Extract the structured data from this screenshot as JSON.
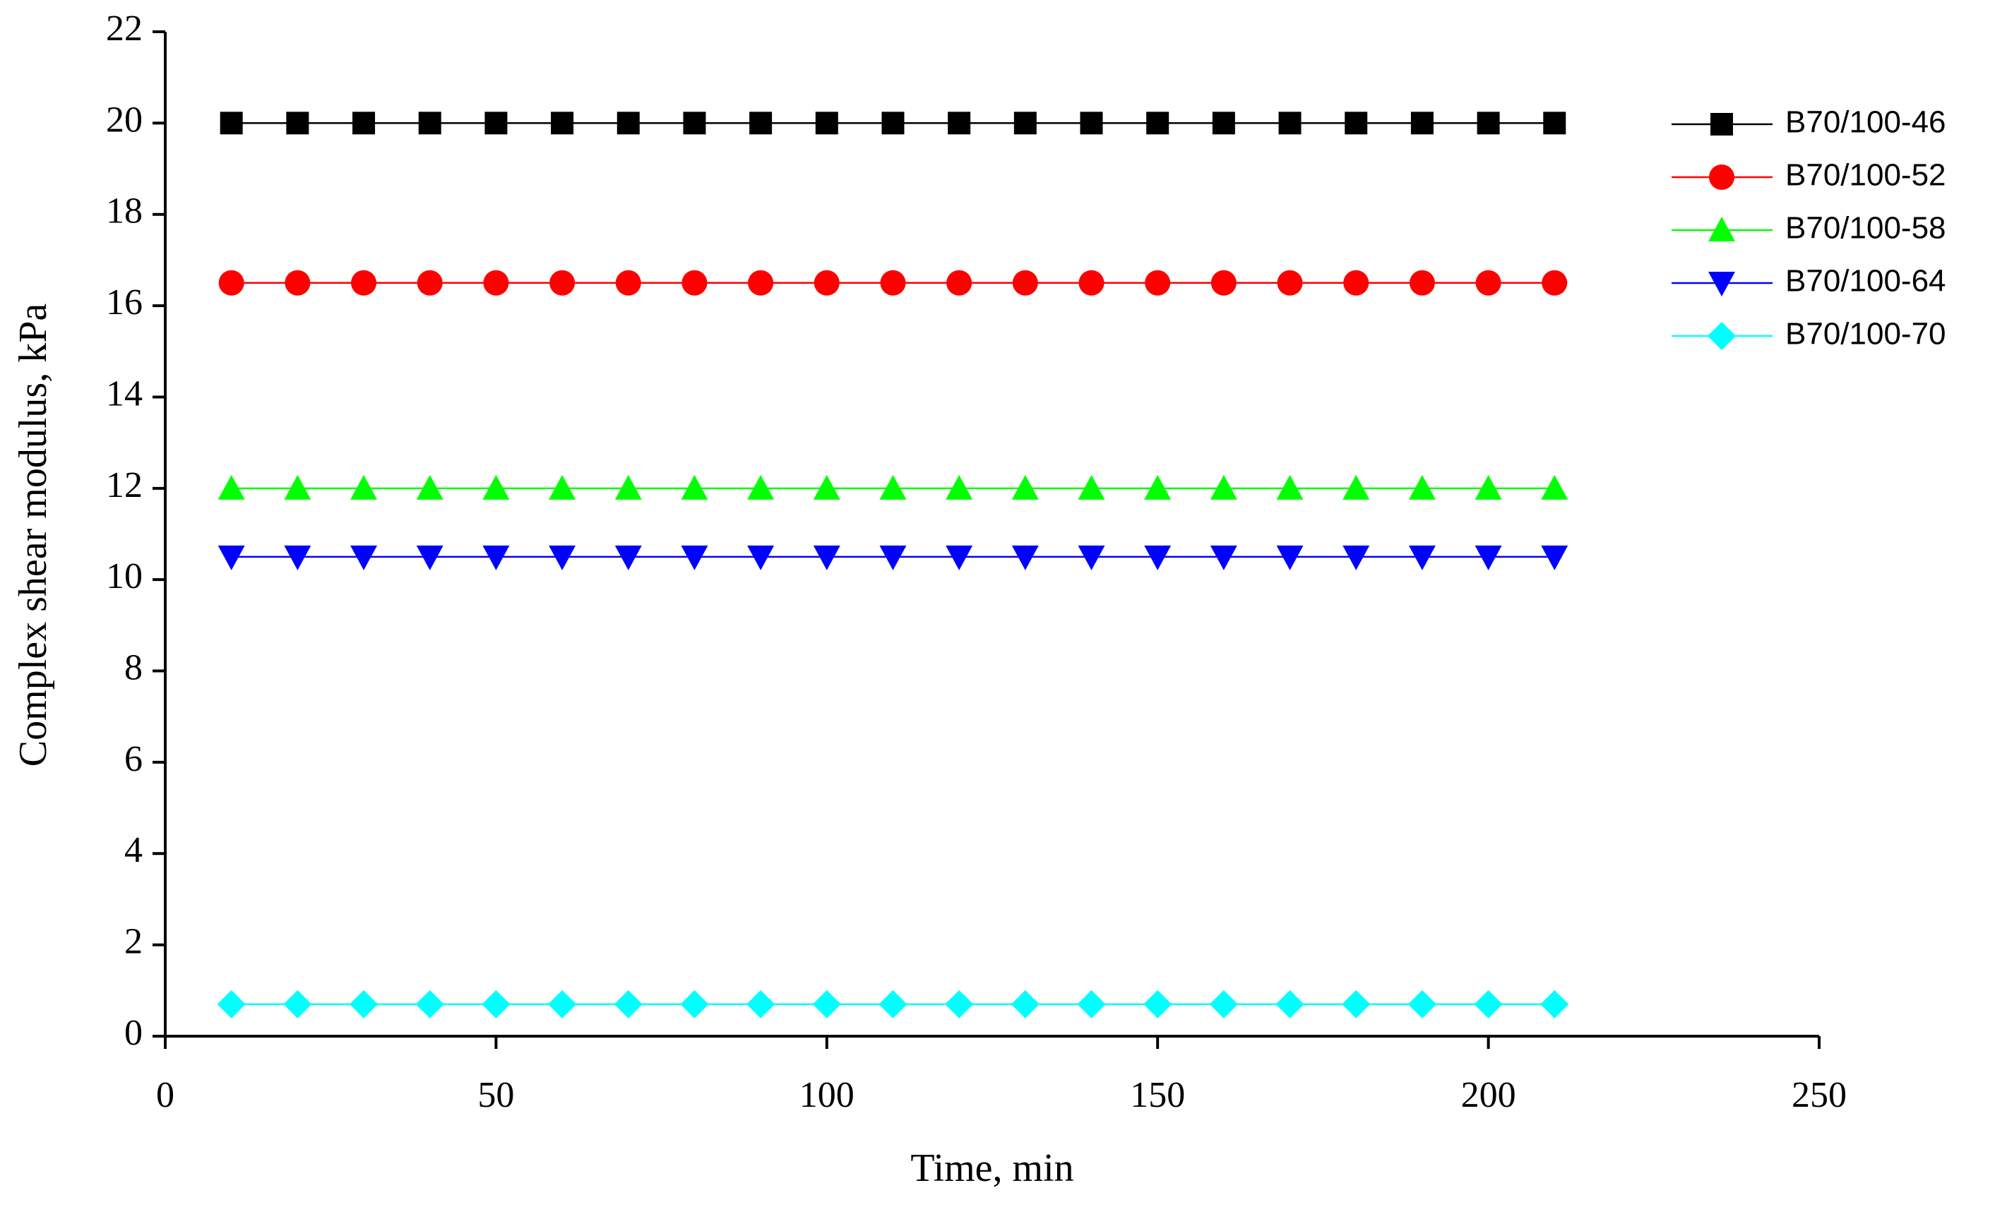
{
  "chart_data": {
    "type": "line",
    "x_label": "Time, min",
    "y_label": "Complex shear modulus, kPa",
    "x": [
      10,
      20,
      30,
      40,
      50,
      60,
      70,
      80,
      90,
      100,
      110,
      120,
      130,
      140,
      150,
      160,
      170,
      180,
      190,
      200,
      210
    ],
    "series": [
      {
        "name": "B70/100-46",
        "color": "#000000",
        "marker": "square",
        "values": [
          20,
          20,
          20,
          20,
          20,
          20,
          20,
          20,
          20,
          20,
          20,
          20,
          20,
          20,
          20,
          20,
          20,
          20,
          20,
          20,
          20
        ]
      },
      {
        "name": "B70/100-52",
        "color": "#ff0000",
        "marker": "circle",
        "values": [
          16.5,
          16.5,
          16.5,
          16.5,
          16.5,
          16.5,
          16.5,
          16.5,
          16.5,
          16.5,
          16.5,
          16.5,
          16.5,
          16.5,
          16.5,
          16.5,
          16.5,
          16.5,
          16.5,
          16.5,
          16.5
        ]
      },
      {
        "name": "B70/100-58",
        "color": "#00ff00",
        "marker": "triangle-up",
        "values": [
          12,
          12,
          12,
          12,
          12,
          12,
          12,
          12,
          12,
          12,
          12,
          12,
          12,
          12,
          12,
          12,
          12,
          12,
          12,
          12,
          12
        ]
      },
      {
        "name": "B70/100-64",
        "color": "#0000ff",
        "marker": "triangle-down",
        "values": [
          10.5,
          10.5,
          10.5,
          10.5,
          10.5,
          10.5,
          10.5,
          10.5,
          10.5,
          10.5,
          10.5,
          10.5,
          10.5,
          10.5,
          10.5,
          10.5,
          10.5,
          10.5,
          10.5,
          10.5,
          10.5
        ]
      },
      {
        "name": "B70/100-70",
        "color": "#00ffff",
        "marker": "diamond",
        "values": [
          0.7,
          0.7,
          0.7,
          0.7,
          0.7,
          0.7,
          0.7,
          0.7,
          0.7,
          0.7,
          0.7,
          0.7,
          0.7,
          0.7,
          0.7,
          0.7,
          0.7,
          0.7,
          0.7,
          0.7,
          0.7
        ]
      }
    ],
    "xlim": [
      0,
      250
    ],
    "xticks": [
      0,
      50,
      100,
      150,
      200,
      250
    ],
    "ylim": [
      0,
      22
    ],
    "yticks": [
      0,
      2,
      4,
      6,
      8,
      10,
      12,
      14,
      16,
      18,
      20,
      22
    ],
    "grid": false,
    "legend": "upper right"
  }
}
